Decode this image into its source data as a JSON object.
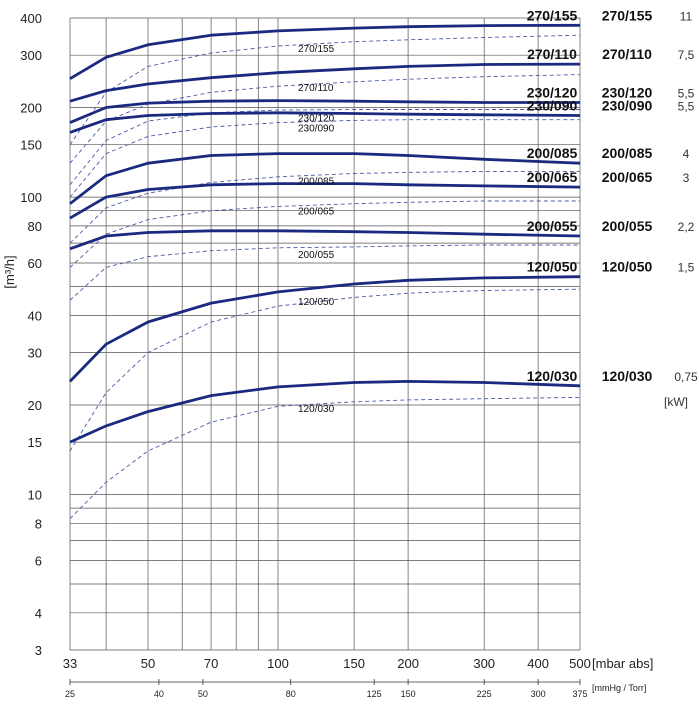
{
  "chart_data": {
    "type": "line",
    "x_scale": "log",
    "y_scale": "log",
    "xlim": [
      33,
      500
    ],
    "ylim": [
      3,
      400
    ],
    "x_ticks": [
      33,
      50,
      70,
      100,
      150,
      200,
      300,
      400,
      500
    ],
    "x_gridlines": [
      33,
      40,
      50,
      60,
      70,
      80,
      90,
      100,
      150,
      200,
      300,
      400,
      500
    ],
    "y_ticks": [
      3,
      4,
      6,
      8,
      10,
      15,
      20,
      30,
      40,
      60,
      80,
      100,
      150,
      200,
      300,
      400
    ],
    "y_gridlines": [
      3,
      4,
      5,
      6,
      7,
      8,
      9,
      10,
      15,
      20,
      30,
      40,
      50,
      60,
      70,
      80,
      90,
      100,
      150,
      200,
      300,
      400
    ],
    "xlabel": "[mbar abs]",
    "ylabel": "[m³/h]",
    "secondary_x": {
      "label": "[mmHg / Torr]",
      "ticks": [
        {
          "label": "25",
          "mbar": 33
        },
        {
          "label": "40",
          "mbar": 53
        },
        {
          "label": "50",
          "mbar": 67
        },
        {
          "label": "80",
          "mbar": 107
        },
        {
          "label": "125",
          "mbar": 167
        },
        {
          "label": "150",
          "mbar": 200
        },
        {
          "label": "225",
          "mbar": 300
        },
        {
          "label": "300",
          "mbar": 400
        },
        {
          "label": "375",
          "mbar": 500
        }
      ]
    },
    "kw_unit": "[kW]",
    "grid": true,
    "series": [
      {
        "name": "270/155",
        "label_right": "270/155",
        "label_dashed": "270/155",
        "kw": "11",
        "solid": [
          [
            33,
            250
          ],
          [
            40,
            295
          ],
          [
            50,
            325
          ],
          [
            70,
            350
          ],
          [
            100,
            362
          ],
          [
            150,
            370
          ],
          [
            200,
            374
          ],
          [
            300,
            377
          ],
          [
            500,
            378
          ]
        ],
        "dashed": [
          [
            33,
            150
          ],
          [
            40,
            225
          ],
          [
            50,
            275
          ],
          [
            70,
            305
          ],
          [
            100,
            322
          ],
          [
            150,
            333
          ],
          [
            200,
            338
          ],
          [
            300,
            344
          ],
          [
            500,
            350
          ]
        ]
      },
      {
        "name": "270/110",
        "label_right": "270/110",
        "label_dashed": "270/110",
        "kw": "7,5",
        "solid": [
          [
            33,
            210
          ],
          [
            40,
            228
          ],
          [
            50,
            240
          ],
          [
            70,
            252
          ],
          [
            100,
            262
          ],
          [
            150,
            270
          ],
          [
            200,
            275
          ],
          [
            300,
            279
          ],
          [
            500,
            280
          ]
        ],
        "dashed": [
          [
            33,
            130
          ],
          [
            40,
            180
          ],
          [
            50,
            205
          ],
          [
            70,
            225
          ],
          [
            100,
            236
          ],
          [
            150,
            244
          ],
          [
            200,
            249
          ],
          [
            300,
            254
          ],
          [
            500,
            258
          ]
        ]
      },
      {
        "name": "230/120",
        "label_right": "230/120",
        "label_dashed": "230/120",
        "kw": "5,5",
        "solid": [
          [
            33,
            178
          ],
          [
            40,
            200
          ],
          [
            50,
            207
          ],
          [
            70,
            210
          ],
          [
            100,
            211
          ],
          [
            150,
            210
          ],
          [
            200,
            209
          ],
          [
            300,
            208
          ],
          [
            500,
            208
          ]
        ],
        "dashed": [
          [
            33,
            110
          ],
          [
            40,
            155
          ],
          [
            50,
            180
          ],
          [
            70,
            192
          ],
          [
            100,
            196
          ],
          [
            150,
            197
          ],
          [
            200,
            197
          ],
          [
            300,
            197
          ],
          [
            500,
            197
          ]
        ]
      },
      {
        "name": "230/090",
        "label_right": "230/090",
        "label_dashed": "230/090",
        "kw": "5,5",
        "solid": [
          [
            33,
            165
          ],
          [
            40,
            182
          ],
          [
            50,
            188
          ],
          [
            70,
            191
          ],
          [
            100,
            192
          ],
          [
            150,
            191
          ],
          [
            200,
            190
          ],
          [
            300,
            189
          ],
          [
            500,
            188
          ]
        ],
        "dashed": [
          [
            33,
            100
          ],
          [
            40,
            140
          ],
          [
            50,
            160
          ],
          [
            70,
            172
          ],
          [
            100,
            178
          ],
          [
            150,
            181
          ],
          [
            200,
            182
          ],
          [
            300,
            182
          ],
          [
            500,
            182
          ]
        ]
      },
      {
        "name": "200/085",
        "label_right": "200/085",
        "label_dashed": "200/085",
        "kw": "4",
        "solid": [
          [
            33,
            95
          ],
          [
            40,
            118
          ],
          [
            50,
            130
          ],
          [
            70,
            138
          ],
          [
            100,
            140
          ],
          [
            150,
            140
          ],
          [
            200,
            138
          ],
          [
            300,
            134
          ],
          [
            500,
            130
          ]
        ],
        "dashed": [
          [
            33,
            70
          ],
          [
            40,
            92
          ],
          [
            50,
            103
          ],
          [
            70,
            112
          ],
          [
            100,
            117
          ],
          [
            150,
            120
          ],
          [
            200,
            121
          ],
          [
            300,
            122
          ],
          [
            500,
            122
          ]
        ]
      },
      {
        "name": "200/065",
        "label_right": "200/065",
        "label_dashed": "200/065",
        "kw": "3",
        "solid": [
          [
            33,
            85
          ],
          [
            40,
            100
          ],
          [
            50,
            106
          ],
          [
            70,
            110
          ],
          [
            100,
            111
          ],
          [
            150,
            111
          ],
          [
            200,
            110
          ],
          [
            300,
            109
          ],
          [
            500,
            108
          ]
        ],
        "dashed": [
          [
            33,
            58
          ],
          [
            40,
            75
          ],
          [
            50,
            84
          ],
          [
            70,
            90
          ],
          [
            100,
            93
          ],
          [
            150,
            95
          ],
          [
            200,
            96
          ],
          [
            300,
            97
          ],
          [
            500,
            97
          ]
        ]
      },
      {
        "name": "200/055",
        "label_right": "200/055",
        "label_dashed": "200/055",
        "kw": "2,2",
        "solid": [
          [
            33,
            67
          ],
          [
            40,
            74
          ],
          [
            50,
            76
          ],
          [
            70,
            77
          ],
          [
            100,
            77
          ],
          [
            150,
            76.5
          ],
          [
            200,
            76
          ],
          [
            300,
            75
          ],
          [
            500,
            74
          ]
        ],
        "dashed": [
          [
            33,
            45
          ],
          [
            40,
            58
          ],
          [
            50,
            63
          ],
          [
            70,
            66
          ],
          [
            100,
            67.5
          ],
          [
            150,
            68
          ],
          [
            200,
            68.5
          ],
          [
            300,
            69
          ],
          [
            500,
            69
          ]
        ]
      },
      {
        "name": "120/050",
        "label_right": "120/050",
        "label_dashed": "120/050",
        "kw": "1,5",
        "solid": [
          [
            33,
            24
          ],
          [
            40,
            32
          ],
          [
            50,
            38
          ],
          [
            70,
            44
          ],
          [
            100,
            48
          ],
          [
            150,
            51
          ],
          [
            200,
            52.5
          ],
          [
            300,
            53.5
          ],
          [
            500,
            54
          ]
        ],
        "dashed": [
          [
            33,
            14
          ],
          [
            40,
            22
          ],
          [
            50,
            30
          ],
          [
            70,
            38
          ],
          [
            100,
            43
          ],
          [
            150,
            46
          ],
          [
            200,
            47.5
          ],
          [
            300,
            48.5
          ],
          [
            500,
            49
          ]
        ]
      },
      {
        "name": "120/030",
        "label_right": "120/030",
        "label_dashed": "120/030",
        "kw": "0,75",
        "solid": [
          [
            33,
            15
          ],
          [
            40,
            17
          ],
          [
            50,
            19
          ],
          [
            70,
            21.5
          ],
          [
            100,
            23
          ],
          [
            150,
            23.8
          ],
          [
            200,
            24
          ],
          [
            300,
            23.8
          ],
          [
            500,
            23.2
          ]
        ],
        "dashed": [
          [
            33,
            8.3
          ],
          [
            40,
            11
          ],
          [
            50,
            14
          ],
          [
            70,
            17.5
          ],
          [
            100,
            19.8
          ],
          [
            150,
            20.5
          ],
          [
            200,
            20.8
          ],
          [
            300,
            21
          ],
          [
            500,
            21.2
          ]
        ]
      }
    ],
    "colors": {
      "solid": "#1b2a80",
      "dashed": "#4a5aa8",
      "grid": "#555555"
    }
  }
}
